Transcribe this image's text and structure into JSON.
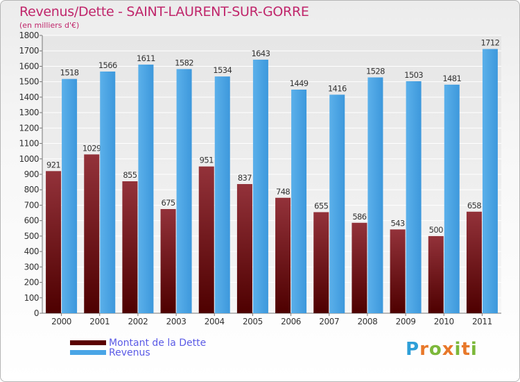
{
  "header": {
    "title": "Revenus/Dette - SAINT-LAURENT-SUR-GORRE",
    "subtitle": "(en milliers d'€)"
  },
  "chart_data": {
    "type": "bar",
    "categories": [
      "2000",
      "2001",
      "2002",
      "2003",
      "2004",
      "2005",
      "2006",
      "2007",
      "2008",
      "2009",
      "2010",
      "2011"
    ],
    "series": [
      {
        "name": "Montant de la Dette",
        "values": [
          921,
          1029,
          855,
          675,
          951,
          837,
          748,
          655,
          586,
          543,
          500,
          658
        ],
        "color": "#8b1a1a"
      },
      {
        "name": "Revenus",
        "values": [
          1518,
          1566,
          1611,
          1582,
          1534,
          1643,
          1449,
          1416,
          1528,
          1503,
          1481,
          1712
        ],
        "color": "#4aa5e6"
      }
    ],
    "yticks": [
      0,
      100,
      200,
      300,
      400,
      500,
      600,
      700,
      800,
      900,
      1000,
      1100,
      1200,
      1300,
      1400,
      1500,
      1600,
      1700,
      1800
    ],
    "ylim": [
      0,
      1800
    ],
    "grid": true,
    "legend_position": "bottom-left"
  },
  "legend": {
    "debt_label": "Montant de la Dette",
    "revenue_label": "Revenus"
  },
  "logo": {
    "letters": [
      "P",
      "r",
      "o",
      "x",
      "i",
      "t",
      "i"
    ],
    "colors": [
      "#2e9fd8",
      "#e8782a",
      "#7cb83a",
      "#e8782a",
      "#7cb83a",
      "#e8782a",
      "#7cb83a"
    ]
  }
}
